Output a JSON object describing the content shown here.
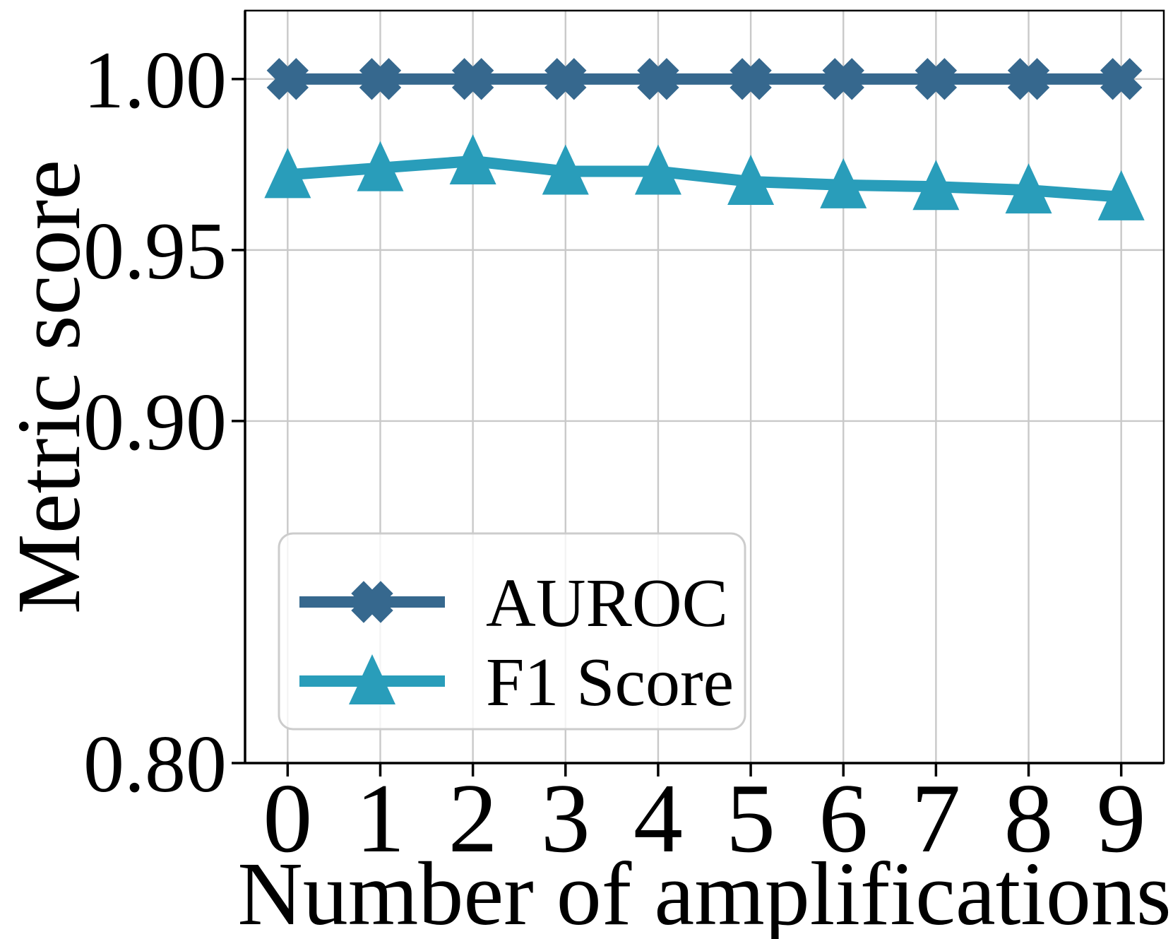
{
  "figure": {
    "background": "#ffffff"
  },
  "chart_data": {
    "type": "line",
    "title": "",
    "xlabel": "Number of amplifications",
    "ylabel": "Metric score",
    "x": [
      0,
      1,
      2,
      3,
      4,
      5,
      6,
      7,
      8,
      9
    ],
    "xtick_labels": [
      "0",
      "1",
      "2",
      "3",
      "4",
      "5",
      "6",
      "7",
      "8",
      "9"
    ],
    "yticks": [
      0.8,
      0.9,
      0.95,
      1.0
    ],
    "ytick_labels": [
      "0.80",
      "0.90",
      "0.95",
      "1.00"
    ],
    "xlim": [
      -0.46,
      9.46
    ],
    "ylim": [
      0.8,
      1.02
    ],
    "grid": true,
    "grid_color": "#c9c9c9",
    "spine_color": "#000000",
    "legend": {
      "position": "lower-left",
      "border_color": "#cccccc",
      "background_opacity": 0.8
    },
    "series": [
      {
        "name": "AUROC",
        "color": "#36688E",
        "marker": "x-filled",
        "values": [
          1.0,
          1.0,
          1.0,
          1.0,
          1.0,
          1.0,
          1.0,
          1.0,
          1.0,
          1.0
        ]
      },
      {
        "name": "F1 Score",
        "color": "#299DBA",
        "marker": "triangle-up",
        "values": [
          0.972,
          0.974,
          0.976,
          0.973,
          0.973,
          0.97,
          0.969,
          0.9685,
          0.9675,
          0.9655
        ]
      }
    ]
  }
}
